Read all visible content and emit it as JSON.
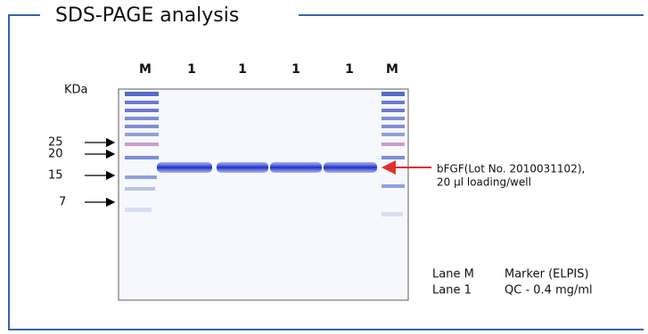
{
  "title": "SDS-PAGE analysis",
  "lanes": [
    "M",
    "1",
    "1",
    "1",
    "1",
    "M"
  ],
  "size_unit": "KDa",
  "markers": [
    25,
    20,
    15,
    7
  ],
  "annotation": [
    "bFGF(Lot No. 2010031102),",
    "20 μl loading/well"
  ],
  "legend": [
    {
      "lane": "Lane M",
      "description": "Marker (ELPIS)"
    },
    {
      "lane": "Lane 1",
      "description": "QC - 0.4 mg/ml"
    }
  ]
}
